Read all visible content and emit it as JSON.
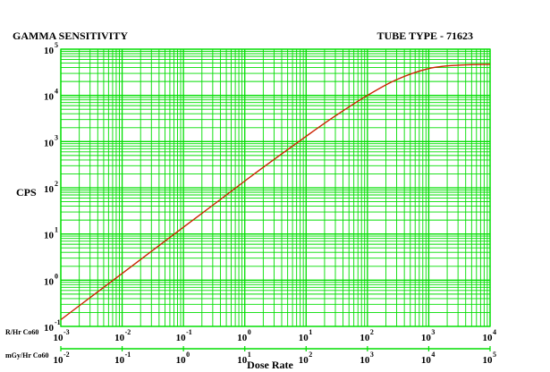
{
  "chart_data": {
    "type": "line",
    "title": "GAMMA SENSITIVITY",
    "subtitle": "TUBE TYPE - 71623",
    "ylabel": "CPS",
    "xlabel": "Dose Rate",
    "x_scale": "log",
    "y_scale": "log",
    "grid": true,
    "xlim": [
      0.001,
      10000
    ],
    "ylim": [
      0.1,
      100000
    ],
    "x_axes": [
      {
        "label": "R/Hr Co60",
        "range": [
          0.001,
          10000
        ],
        "ticks": [
          {
            "base": "10",
            "exp": "-3"
          },
          {
            "base": "10",
            "exp": "-2"
          },
          {
            "base": "10",
            "exp": "-1"
          },
          {
            "base": "10",
            "exp": "0"
          },
          {
            "base": "10",
            "exp": "1"
          },
          {
            "base": "10",
            "exp": "2"
          },
          {
            "base": "10",
            "exp": "3"
          },
          {
            "base": "10",
            "exp": "4"
          }
        ]
      },
      {
        "label": "mGy/Hr Co60",
        "range": [
          0.01,
          100000
        ],
        "ticks": [
          {
            "base": "10",
            "exp": "-2"
          },
          {
            "base": "10",
            "exp": "-1"
          },
          {
            "base": "10",
            "exp": "0"
          },
          {
            "base": "10",
            "exp": "1"
          },
          {
            "base": "10",
            "exp": "2"
          },
          {
            "base": "10",
            "exp": "3"
          },
          {
            "base": "10",
            "exp": "4"
          },
          {
            "base": "10",
            "exp": "5"
          }
        ]
      }
    ],
    "y_ticks": [
      {
        "base": "10",
        "exp": "-1"
      },
      {
        "base": "10",
        "exp": "0"
      },
      {
        "base": "10",
        "exp": "1"
      },
      {
        "base": "10",
        "exp": "2"
      },
      {
        "base": "10",
        "exp": "3"
      },
      {
        "base": "10",
        "exp": "4"
      },
      {
        "base": "10",
        "exp": "5"
      }
    ],
    "series": [
      {
        "x": [
          0.001,
          0.003,
          0.01,
          0.03,
          0.1,
          0.3,
          1,
          3,
          10,
          30,
          100,
          300,
          1000,
          3000,
          10000
        ],
        "y": [
          0.14,
          0.42,
          1.4,
          4.2,
          14,
          42,
          140,
          410,
          1300,
          3600,
          10000,
          22000,
          38000,
          45000,
          47000
        ]
      }
    ],
    "colors": {
      "grid": "#00dd00",
      "curve": "#cc2200",
      "axis_line": "#00dd00"
    }
  }
}
